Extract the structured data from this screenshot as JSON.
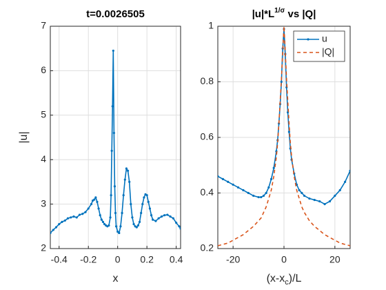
{
  "chart_data": [
    {
      "type": "line",
      "title": "t=0.0026505",
      "xlabel": "x",
      "ylabel": "|u|",
      "xlim": [
        -0.46,
        0.43
      ],
      "xticks": [
        -0.4,
        -0.2,
        0,
        0.2,
        0.4
      ],
      "ylim": [
        2,
        7
      ],
      "yticks": [
        2,
        3,
        4,
        5,
        6,
        7
      ],
      "grid": true,
      "x": [
        -0.46,
        -0.44,
        -0.42,
        -0.4,
        -0.38,
        -0.36,
        -0.34,
        -0.32,
        -0.3,
        -0.28,
        -0.26,
        -0.24,
        -0.22,
        -0.2,
        -0.18,
        -0.17,
        -0.16,
        -0.15,
        -0.14,
        -0.13,
        -0.12,
        -0.11,
        -0.1,
        -0.09,
        -0.08,
        -0.07,
        -0.06,
        -0.05,
        -0.045,
        -0.04,
        -0.035,
        -0.03,
        -0.025,
        -0.02,
        -0.015,
        -0.01,
        0,
        0.01,
        0.02,
        0.03,
        0.04,
        0.05,
        0.06,
        0.07,
        0.08,
        0.09,
        0.1,
        0.11,
        0.12,
        0.13,
        0.14,
        0.15,
        0.16,
        0.17,
        0.18,
        0.19,
        0.2,
        0.21,
        0.22,
        0.23,
        0.24,
        0.26,
        0.28,
        0.3,
        0.32,
        0.34,
        0.36,
        0.38,
        0.4,
        0.42,
        0.43
      ],
      "series": [
        {
          "name": "u",
          "color": "#0072BD",
          "values": [
            2.35,
            2.42,
            2.48,
            2.55,
            2.6,
            2.63,
            2.68,
            2.7,
            2.72,
            2.7,
            2.76,
            2.78,
            2.82,
            2.9,
            3.0,
            3.08,
            3.1,
            3.15,
            3.05,
            2.9,
            2.75,
            2.65,
            2.6,
            2.55,
            2.52,
            2.5,
            2.52,
            2.7,
            3.2,
            4.2,
            5.2,
            6.45,
            4.6,
            3.4,
            2.8,
            2.5,
            2.38,
            2.35,
            2.5,
            2.8,
            3.2,
            3.55,
            3.8,
            3.75,
            3.5,
            3.0,
            2.7,
            2.55,
            2.5,
            2.48,
            2.52,
            2.6,
            2.8,
            3.0,
            3.15,
            3.22,
            3.2,
            3.05,
            2.9,
            2.75,
            2.65,
            2.62,
            2.68,
            2.72,
            2.75,
            2.76,
            2.72,
            2.68,
            2.58,
            2.5,
            2.45
          ]
        }
      ]
    },
    {
      "type": "line",
      "title": "|u|*L",
      "title_sup": "1/σ",
      "title_end": " vs |Q|",
      "xlabel": "(x-x",
      "xlabel_sub": "c",
      "xlabel_end": ")/L",
      "xlim": [
        -26,
        26
      ],
      "xticks": [
        -20,
        0,
        20
      ],
      "ylim": [
        0.2,
        1
      ],
      "yticks": [
        0.2,
        0.4,
        0.6,
        0.8,
        1
      ],
      "grid": true,
      "legend": "northeast",
      "x": [
        -26,
        -24,
        -22,
        -20,
        -18,
        -16,
        -14,
        -12,
        -10,
        -9,
        -8,
        -7,
        -6,
        -5,
        -4,
        -3,
        -2.5,
        -2,
        -1.5,
        -1,
        -0.5,
        0,
        0.5,
        1,
        1.5,
        2,
        2.5,
        3,
        4,
        5,
        6,
        7,
        8,
        10,
        12,
        14,
        16,
        18,
        20,
        22,
        24,
        26
      ],
      "series": [
        {
          "name": "u",
          "color": "#0072BD",
          "dash": false,
          "values": [
            0.46,
            0.45,
            0.44,
            0.43,
            0.42,
            0.41,
            0.4,
            0.39,
            0.385,
            0.385,
            0.39,
            0.4,
            0.42,
            0.45,
            0.49,
            0.55,
            0.59,
            0.65,
            0.72,
            0.8,
            0.92,
            0.99,
            0.9,
            0.78,
            0.69,
            0.62,
            0.56,
            0.52,
            0.47,
            0.43,
            0.41,
            0.4,
            0.39,
            0.38,
            0.375,
            0.37,
            0.36,
            0.37,
            0.39,
            0.41,
            0.44,
            0.48
          ]
        },
        {
          "name": "|Q|",
          "color": "#D95319",
          "dash": true,
          "values": [
            0.21,
            0.215,
            0.22,
            0.23,
            0.24,
            0.25,
            0.265,
            0.28,
            0.3,
            0.31,
            0.33,
            0.35,
            0.38,
            0.41,
            0.46,
            0.53,
            0.58,
            0.65,
            0.73,
            0.81,
            0.91,
            1,
            0.91,
            0.81,
            0.73,
            0.65,
            0.58,
            0.53,
            0.46,
            0.41,
            0.38,
            0.35,
            0.33,
            0.3,
            0.28,
            0.265,
            0.25,
            0.24,
            0.23,
            0.22,
            0.215,
            0.21
          ]
        }
      ]
    }
  ]
}
